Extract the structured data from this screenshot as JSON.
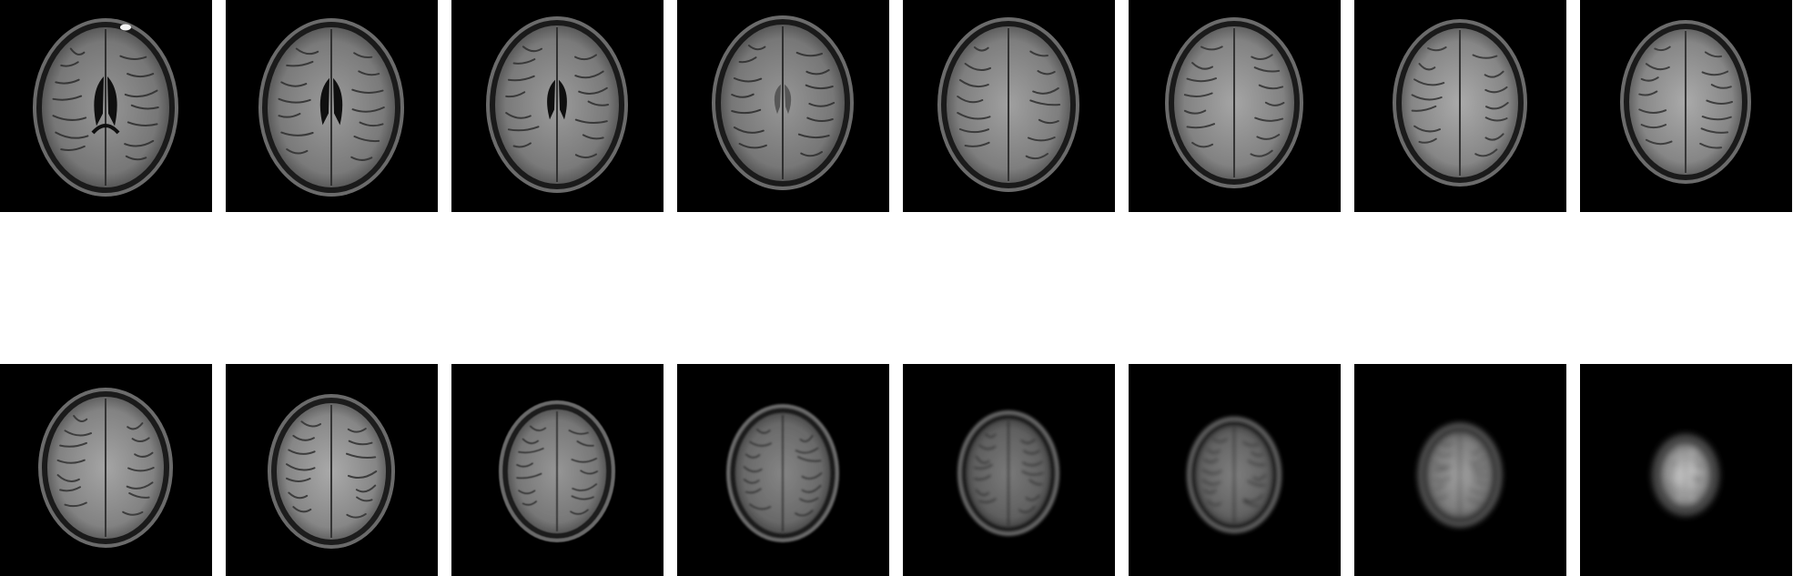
{
  "grid": {
    "rows": [
      {
        "slices": [
          {
            "kind": "brain",
            "orientation": "axial",
            "ventricles": "large-butterfly",
            "marker": "bright-top-right"
          },
          {
            "kind": "brain",
            "orientation": "axial",
            "ventricles": "large"
          },
          {
            "kind": "brain",
            "orientation": "axial",
            "ventricles": "medium"
          },
          {
            "kind": "brain",
            "orientation": "axial",
            "ventricles": "faint"
          },
          {
            "kind": "brain",
            "orientation": "axial",
            "ventricles": "none"
          },
          {
            "kind": "brain",
            "orientation": "axial",
            "ventricles": "none"
          },
          {
            "kind": "brain",
            "orientation": "axial",
            "ventricles": "none"
          },
          {
            "kind": "brain",
            "orientation": "axial",
            "ventricles": "none"
          }
        ]
      },
      {
        "slices": [
          {
            "kind": "brain",
            "orientation": "axial",
            "ventricles": "none"
          },
          {
            "kind": "brain",
            "orientation": "axial",
            "ventricles": "none"
          },
          {
            "kind": "brain",
            "orientation": "axial",
            "ventricles": "none"
          },
          {
            "kind": "brain",
            "orientation": "axial",
            "ventricles": "none"
          },
          {
            "kind": "brain",
            "orientation": "axial",
            "ventricles": "none"
          },
          {
            "kind": "brain",
            "orientation": "axial",
            "ventricles": "none"
          },
          {
            "kind": "brain",
            "orientation": "axial",
            "ventricles": "none"
          },
          {
            "kind": "brain",
            "orientation": "axial",
            "ventricles": "none"
          }
        ]
      }
    ],
    "background_color": "#000000",
    "page_color": "#ffffff",
    "tissue_color": "#8a8a8a",
    "skull_color": "#5a5a5a"
  }
}
